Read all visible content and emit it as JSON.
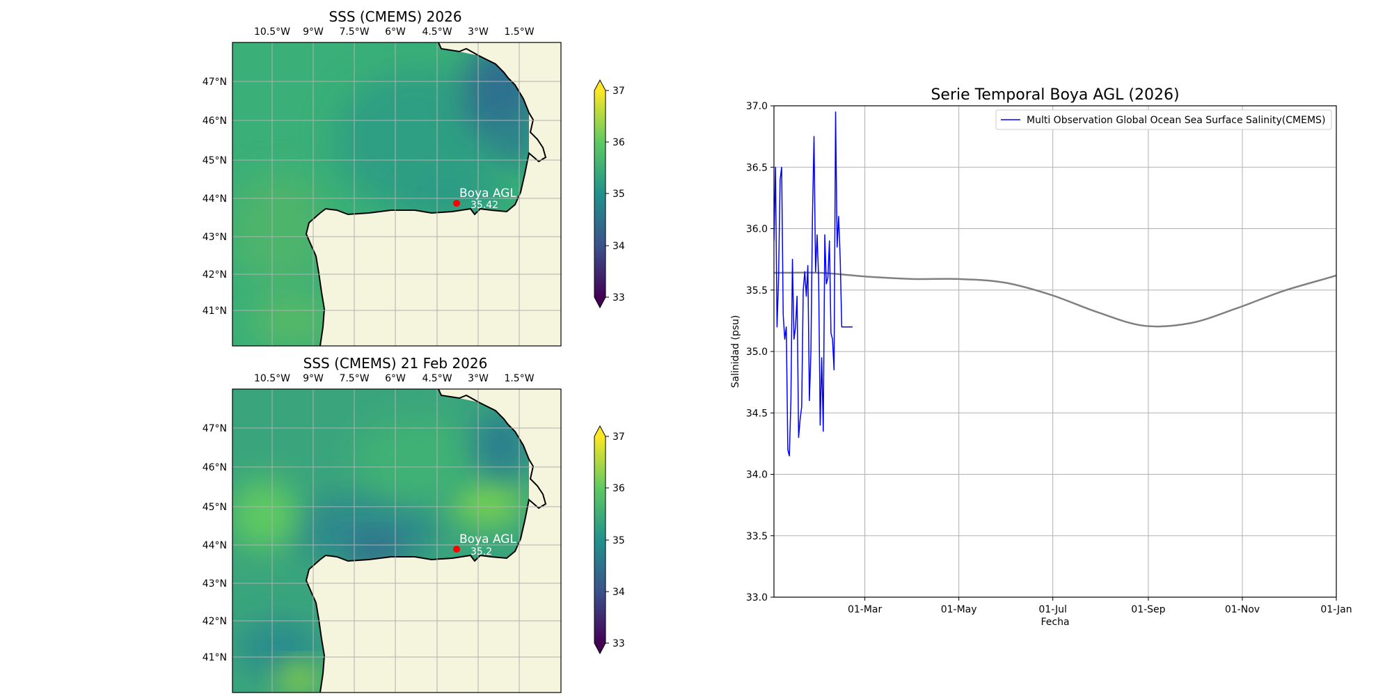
{
  "maps": [
    {
      "title": "SSS (CMEMS) 2026",
      "lon_labels": [
        "10.5°W",
        "9°W",
        "7.5°W",
        "6°W",
        "4.5°W",
        "3°W",
        "1.5°W"
      ],
      "lat_labels": [
        "47°N",
        "46°N",
        "45°N",
        "44°N",
        "43°N",
        "42°N",
        "41°N"
      ],
      "buoy_name": "Boya AGL",
      "buoy_value": "35.42",
      "colorbar_ticks": [
        "37",
        "36",
        "35",
        "34",
        "33"
      ],
      "field": "smooth"
    },
    {
      "title": "SSS (CMEMS) 21 Feb 2026",
      "lon_labels": [
        "10.5°W",
        "9°W",
        "7.5°W",
        "6°W",
        "4.5°W",
        "3°W",
        "1.5°W"
      ],
      "lat_labels": [
        "47°N",
        "46°N",
        "45°N",
        "44°N",
        "43°N",
        "42°N",
        "41°N"
      ],
      "buoy_name": "Boya AGL",
      "buoy_value": "35.2",
      "colorbar_ticks": [
        "37",
        "36",
        "35",
        "34",
        "33"
      ],
      "field": "patchy"
    }
  ],
  "colors": {
    "land": "#f5f4dd",
    "buoy_marker": "#ff0000",
    "series_line": "#0000ff",
    "climatology_line": "#808080",
    "viridis": [
      "#440154",
      "#3b528b",
      "#21918c",
      "#5ec962",
      "#fde725"
    ]
  },
  "chart_data": {
    "type": "line",
    "title": "Serie Temporal Boya AGL (2026)",
    "xlabel": "Fecha",
    "ylabel": "Salinidad (psu)",
    "ylim": [
      33.0,
      37.0
    ],
    "yticks": [
      "37.0",
      "36.5",
      "36.0",
      "35.5",
      "35.0",
      "34.5",
      "34.0",
      "33.5",
      "33.0"
    ],
    "xlim": [
      "2026-01-01",
      "2027-01-01"
    ],
    "xticks": [
      {
        "date": "2026-03-01",
        "label": "01-Mar"
      },
      {
        "date": "2026-05-01",
        "label": "01-May"
      },
      {
        "date": "2026-07-01",
        "label": "01-Jul"
      },
      {
        "date": "2026-09-01",
        "label": "01-Sep"
      },
      {
        "date": "2026-11-01",
        "label": "01-Nov"
      },
      {
        "date": "2027-01-01",
        "label": "01-Jan"
      }
    ],
    "grid": true,
    "legend_position": "upper right",
    "series": [
      {
        "name": "Multi Observation Global Ocean Sea Surface Salinity(CMEMS)",
        "x": [
          "2026-01-01",
          "2026-01-02",
          "2026-01-03",
          "2026-01-04",
          "2026-01-05",
          "2026-01-06",
          "2026-01-07",
          "2026-01-08",
          "2026-01-09",
          "2026-01-10",
          "2026-01-11",
          "2026-01-12",
          "2026-01-13",
          "2026-01-14",
          "2026-01-15",
          "2026-01-16",
          "2026-01-17",
          "2026-01-18",
          "2026-01-19",
          "2026-01-20",
          "2026-01-21",
          "2026-01-22",
          "2026-01-23",
          "2026-01-24",
          "2026-01-25",
          "2026-01-26",
          "2026-01-27",
          "2026-01-28",
          "2026-01-29",
          "2026-01-30",
          "2026-01-31",
          "2026-02-01",
          "2026-02-02",
          "2026-02-03",
          "2026-02-04",
          "2026-02-05",
          "2026-02-06",
          "2026-02-07",
          "2026-02-08",
          "2026-02-09",
          "2026-02-10",
          "2026-02-11",
          "2026-02-12",
          "2026-02-13",
          "2026-02-14",
          "2026-02-15",
          "2026-02-16",
          "2026-02-17",
          "2026-02-18",
          "2026-02-19",
          "2026-02-20",
          "2026-02-21"
        ],
        "y": [
          35.9,
          36.5,
          35.2,
          35.6,
          36.4,
          36.5,
          35.3,
          35.1,
          35.2,
          34.2,
          34.15,
          34.6,
          35.75,
          35.1,
          35.2,
          35.45,
          34.3,
          34.45,
          34.55,
          35.5,
          35.65,
          35.45,
          35.7,
          34.6,
          35.0,
          36.1,
          36.75,
          35.65,
          35.95,
          35.6,
          34.4,
          34.95,
          34.35,
          35.95,
          35.55,
          35.6,
          35.9,
          35.15,
          35.1,
          34.85,
          36.95,
          35.85,
          36.1,
          35.75,
          35.2,
          35.2,
          35.2,
          35.2,
          35.2,
          35.2,
          35.2,
          35.2
        ]
      },
      {
        "name": "",
        "x": [
          "2026-01-01",
          "2026-01-31",
          "2026-03-02",
          "2026-04-01",
          "2026-05-01",
          "2026-05-31",
          "2026-06-30",
          "2026-07-30",
          "2026-08-29",
          "2026-09-28",
          "2026-10-28",
          "2026-11-27",
          "2026-12-27",
          "2027-01-01"
        ],
        "y": [
          35.64,
          35.64,
          35.61,
          35.59,
          35.59,
          35.56,
          35.46,
          35.32,
          35.21,
          35.23,
          35.35,
          35.49,
          35.6,
          35.62
        ]
      }
    ]
  }
}
